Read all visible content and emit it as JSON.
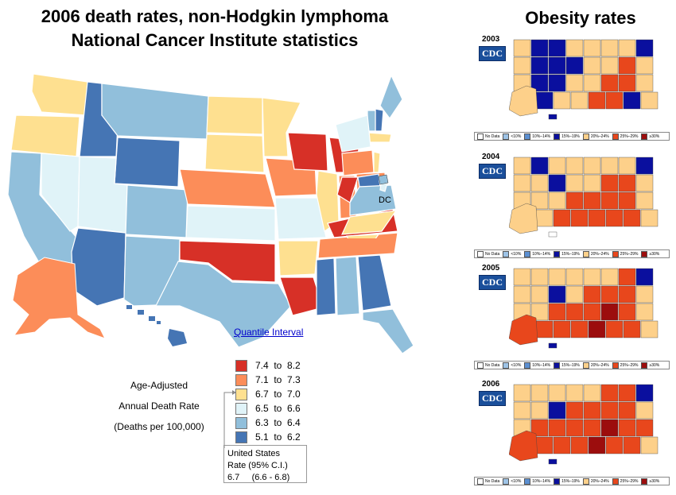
{
  "main_title_line1": "2006 death rates, non-Hodgkin lymphoma",
  "main_title_line2": "National Cancer Institute statistics",
  "obesity_title": "Obesity rates",
  "quantile_link": "Quantile Interval",
  "dc_label": "DC",
  "legend_caption": {
    "line1": "Age-Adjusted",
    "line2": "Annual Death Rate",
    "line3": "(Deaths per 100,000)"
  },
  "legend": [
    {
      "label": "7.4  to  8.2",
      "color": "#d73027"
    },
    {
      "label": "7.1  to  7.3",
      "color": "#fc8d59"
    },
    {
      "label": "6.7  to  7.0",
      "color": "#fee090"
    },
    {
      "label": "6.5  to  6.6",
      "color": "#e0f3f8"
    },
    {
      "label": "6.3  to  6.4",
      "color": "#91bfdb"
    },
    {
      "label": "5.1  to  6.2",
      "color": "#4575b4"
    }
  ],
  "us_rate": {
    "line1": "United States",
    "line2": "Rate (95% C.I.)",
    "line3": "6.7     (6.6 - 6.8)"
  },
  "obesity_panels": [
    {
      "year": "2003",
      "logo": "CDC"
    },
    {
      "year": "2004",
      "logo": "CDC"
    },
    {
      "year": "2005",
      "logo": "CDC"
    },
    {
      "year": "2006",
      "logo": "CDC"
    }
  ],
  "obesity_legend": [
    {
      "label": "No Data",
      "color": "#ffffff"
    },
    {
      "label": "<10%",
      "color": "#9ec3e6"
    },
    {
      "label": "10%–14%",
      "color": "#5b8fd1"
    },
    {
      "label": "15%–19%",
      "color": "#0a0f9e"
    },
    {
      "label": "20%–24%",
      "color": "#fdd08a"
    },
    {
      "label": "25%–29%",
      "color": "#e8471c"
    },
    {
      "label": "≥30%",
      "color": "#9c0d0d"
    }
  ]
}
